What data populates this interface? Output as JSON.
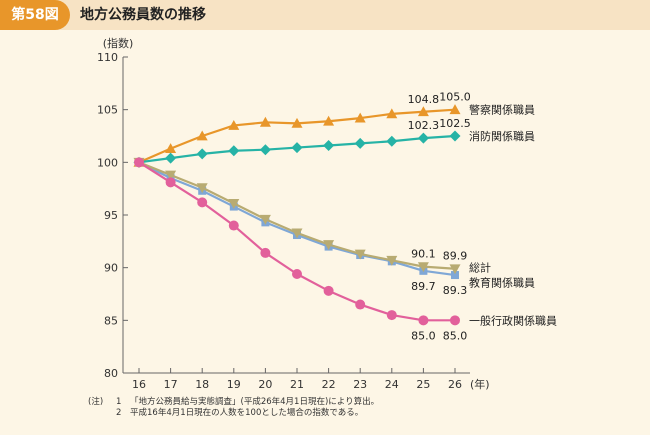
{
  "header": {
    "badge": "第58図",
    "title": "地方公務員数の推移"
  },
  "chart_data": {
    "type": "line",
    "ylabel": "(指数)",
    "xunit": "(年)",
    "x": [
      16,
      17,
      18,
      19,
      20,
      21,
      22,
      23,
      24,
      25,
      26
    ],
    "ylim": [
      80,
      110
    ],
    "yticks": [
      80,
      85,
      90,
      95,
      100,
      105,
      110
    ],
    "series": [
      {
        "name": "警察関係職員",
        "color": "#e8962a",
        "marker": "triangle-up",
        "values": [
          100,
          101.3,
          102.5,
          103.5,
          103.8,
          103.7,
          103.9,
          104.2,
          104.6,
          104.8,
          105.0
        ]
      },
      {
        "name": "消防関係職員",
        "color": "#26b3a6",
        "marker": "diamond",
        "values": [
          100,
          100.4,
          100.8,
          101.1,
          101.2,
          101.4,
          101.6,
          101.8,
          102.0,
          102.3,
          102.5
        ]
      },
      {
        "name": "教育関係職員",
        "color": "#7fa7d6",
        "marker": "square",
        "values": [
          100,
          98.5,
          97.3,
          95.8,
          94.3,
          93.1,
          92.0,
          91.2,
          90.6,
          89.7,
          89.3
        ]
      },
      {
        "name": "総計",
        "color": "#b8ab72",
        "marker": "triangle-down",
        "values": [
          100,
          98.8,
          97.6,
          96.1,
          94.6,
          93.3,
          92.2,
          91.3,
          90.7,
          90.1,
          89.9
        ]
      },
      {
        "name": "一般行政関係職員",
        "color": "#e2609b",
        "marker": "circle",
        "values": [
          100,
          98.1,
          96.2,
          94.0,
          91.4,
          89.4,
          87.8,
          86.5,
          85.5,
          85.0,
          85.0
        ]
      }
    ],
    "data_labels": [
      {
        "text": "104.8",
        "series": 0,
        "index": 9,
        "pos": "above"
      },
      {
        "text": "105.0",
        "series": 0,
        "index": 10,
        "pos": "above"
      },
      {
        "text": "102.3",
        "series": 1,
        "index": 9,
        "pos": "above"
      },
      {
        "text": "102.5",
        "series": 1,
        "index": 10,
        "pos": "above"
      },
      {
        "text": "90.1",
        "series": 3,
        "index": 9,
        "pos": "above"
      },
      {
        "text": "89.9",
        "series": 3,
        "index": 10,
        "pos": "above"
      },
      {
        "text": "89.7",
        "series": 2,
        "index": 9,
        "pos": "below"
      },
      {
        "text": "89.3",
        "series": 2,
        "index": 10,
        "pos": "below"
      },
      {
        "text": "85.0",
        "series": 4,
        "index": 9,
        "pos": "below"
      },
      {
        "text": "85.0",
        "series": 4,
        "index": 10,
        "pos": "below"
      }
    ]
  },
  "notes": {
    "label": "(注)",
    "items": [
      {
        "num": "1",
        "text": "「地方公務員給与実態調査」(平成26年4月1日現在)により算出。"
      },
      {
        "num": "2",
        "text": "平成16年4月1日現在の人数を100とした場合の指数である。"
      }
    ]
  }
}
